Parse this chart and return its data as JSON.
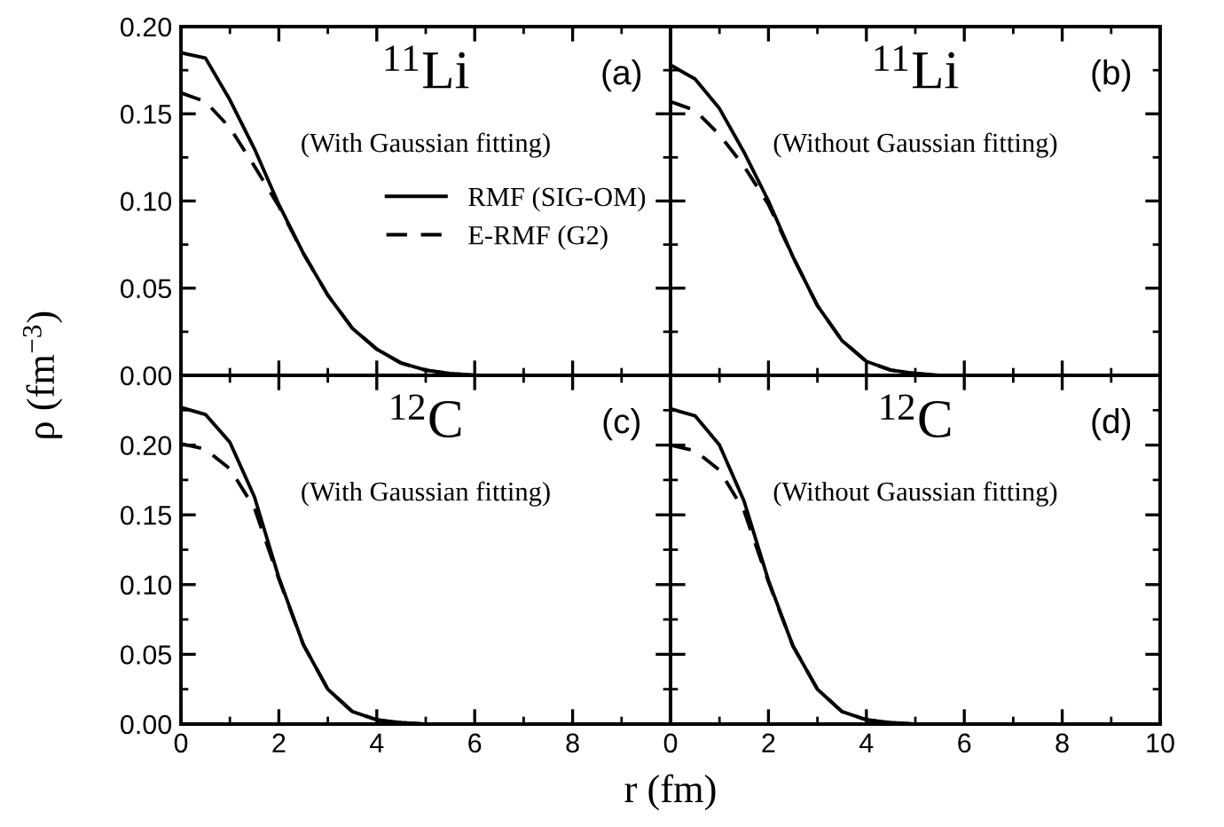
{
  "chart_data": [
    {
      "type": "line",
      "ylabel": "ρ (fm$^{−3}$)",
      "annotations": [
        "$^{11}$Li",
        "(With Gaussian fitting)",
        "(a)"
      ],
      "xlim": [
        0,
        10
      ],
      "ylim": [
        0,
        0.2
      ],
      "xticks": [
        0,
        2,
        4,
        6,
        8,
        10
      ],
      "yticks": [
        {
          "value": 0,
          "label": "0.00"
        },
        {
          "value": 0.05,
          "label": "0.05"
        },
        {
          "value": 0.1,
          "label": "0.10"
        },
        {
          "value": 0.15,
          "label": "0.15"
        },
        {
          "value": 0.2,
          "label": "0.20"
        }
      ],
      "tick_labels": "y",
      "legend": "right",
      "x": [
        0,
        0.5,
        1,
        1.5,
        2,
        2.5,
        3,
        3.5,
        4,
        4.5,
        5,
        5.5,
        6,
        7,
        10
      ],
      "series": [
        {
          "name": "RMF (SIG-OM)",
          "color": "#000000",
          "line_style": "solid",
          "values": [
            0.185,
            0.182,
            0.158,
            0.13,
            0.098,
            0.07,
            0.046,
            0.027,
            0.015,
            0.007,
            0.003,
            0.001,
            0,
            0,
            0
          ]
        },
        {
          "name": "E-RMF (G2)",
          "color": "#000000",
          "line_style": "dashed",
          "values": [
            0.162,
            0.157,
            0.142,
            0.12,
            0.097,
            0.07,
            0.046,
            0.027,
            0.015,
            0.007,
            0.003,
            0.001,
            0,
            0,
            0
          ]
        }
      ]
    },
    {
      "type": "line",
      "annotations": [
        "$^{11}$Li",
        "(Without Gaussian fitting)",
        "(b)"
      ],
      "xlim": [
        0,
        10
      ],
      "ylim": [
        0,
        0.2
      ],
      "xticks": [
        0,
        2,
        4,
        6,
        8,
        10
      ],
      "yticks": [
        0,
        0.05,
        0.1,
        0.15,
        0.2
      ],
      "tick_labels": false,
      "x": [
        0,
        0.5,
        1,
        1.5,
        2,
        2.5,
        3,
        3.5,
        4,
        4.5,
        5,
        5.5,
        10
      ],
      "series": [
        {
          "color": "#000000",
          "line_style": "solid",
          "values": [
            0.178,
            0.17,
            0.153,
            0.128,
            0.1,
            0.068,
            0.04,
            0.02,
            0.008,
            0.003,
            0.001,
            0,
            0
          ]
        },
        {
          "color": "#000000",
          "line_style": "dashed",
          "values": [
            0.157,
            0.152,
            0.138,
            0.12,
            0.098,
            0.068,
            0.04,
            0.02,
            0.008,
            0.003,
            0.001,
            0,
            0
          ]
        }
      ]
    },
    {
      "type": "line",
      "xlabel": "r (fm)",
      "annotations": [
        "$^{12}$C",
        "(With Gaussian fitting)",
        "(c)"
      ],
      "xlim": [
        0,
        10
      ],
      "ylim": [
        0,
        0.25
      ],
      "xticks": [
        0,
        2,
        4,
        6,
        8,
        {
          "value": 10,
          "label": null
        }
      ],
      "yticks": [
        {
          "value": 0,
          "label": "0.00"
        },
        {
          "value": 0.05,
          "label": "0.05"
        },
        {
          "value": 0.1,
          "label": "0.10"
        },
        {
          "value": 0.15,
          "label": "0.15"
        },
        {
          "value": 0.2,
          "label": "0.20"
        }
      ],
      "x": [
        0,
        0.5,
        1,
        1.5,
        2,
        2.5,
        3,
        3.5,
        4,
        4.5,
        5,
        10
      ],
      "series": [
        {
          "color": "#000000",
          "line_style": "solid",
          "values": [
            0.227,
            0.222,
            0.202,
            0.163,
            0.105,
            0.057,
            0.025,
            0.009,
            0.003,
            0.001,
            0,
            0
          ]
        },
        {
          "color": "#000000",
          "line_style": "dashed",
          "values": [
            0.201,
            0.197,
            0.183,
            0.155,
            0.104,
            0.057,
            0.025,
            0.009,
            0.003,
            0.001,
            0,
            0
          ]
        }
      ]
    },
    {
      "type": "line",
      "annotations": [
        "$^{12}$C",
        "(Without Gaussian fitting)",
        "(d)"
      ],
      "xlim": [
        0,
        10
      ],
      "ylim": [
        0,
        0.25
      ],
      "xticks": [
        0,
        2,
        4,
        6,
        8,
        10
      ],
      "yticks": [
        0,
        0.05,
        0.1,
        0.15,
        0.2
      ],
      "tick_labels": "x",
      "x": [
        0,
        0.5,
        1,
        1.5,
        2,
        2.5,
        3,
        3.5,
        4,
        4.5,
        5,
        10
      ],
      "series": [
        {
          "color": "#000000",
          "line_style": "solid",
          "values": [
            0.226,
            0.221,
            0.2,
            0.16,
            0.103,
            0.056,
            0.025,
            0.009,
            0.003,
            0.001,
            0,
            0
          ]
        },
        {
          "color": "#000000",
          "line_style": "dashed",
          "values": [
            0.2,
            0.196,
            0.182,
            0.153,
            0.102,
            0.056,
            0.025,
            0.009,
            0.003,
            0.001,
            0,
            0
          ]
        }
      ]
    }
  ]
}
